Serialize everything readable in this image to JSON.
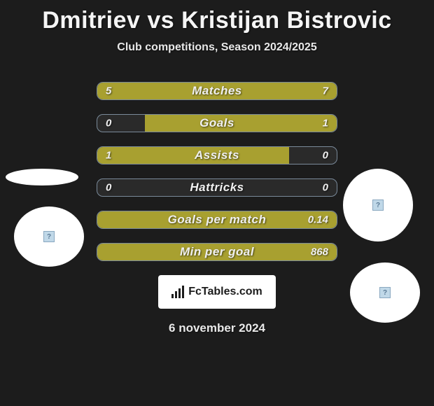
{
  "header": {
    "title": "Dmitriev vs Kristijan Bistrovic",
    "subtitle": "Club competitions, Season 2024/2025"
  },
  "styling": {
    "background_color": "#1c1c1c",
    "bar_color": "#a8a030",
    "bar_border_color": "#7a8a9a",
    "text_color": "#f0f0f0",
    "circle_color": "#ffffff",
    "title_fontsize": 34,
    "subtitle_fontsize": 16,
    "stat_label_fontsize": 17,
    "value_fontsize": 15
  },
  "stats": [
    {
      "label": "Matches",
      "left_value": "5",
      "right_value": "7",
      "left_width_pct": 42,
      "right_width_pct": 58
    },
    {
      "label": "Goals",
      "left_value": "0",
      "right_value": "1",
      "left_width_pct": 0,
      "right_width_pct": 80
    },
    {
      "label": "Assists",
      "left_value": "1",
      "right_value": "0",
      "left_width_pct": 80,
      "right_width_pct": 0
    },
    {
      "label": "Hattricks",
      "left_value": "0",
      "right_value": "0",
      "left_width_pct": 0,
      "right_width_pct": 0
    },
    {
      "label": "Goals per match",
      "left_value": "",
      "right_value": "0.14",
      "left_width_pct": 0,
      "right_width_pct": 100,
      "full": true
    },
    {
      "label": "Min per goal",
      "left_value": "",
      "right_value": "868",
      "left_width_pct": 0,
      "right_width_pct": 100,
      "full": true
    }
  ],
  "logo": {
    "text": "FcTables.com"
  },
  "footer": {
    "date": "6 november 2024"
  }
}
